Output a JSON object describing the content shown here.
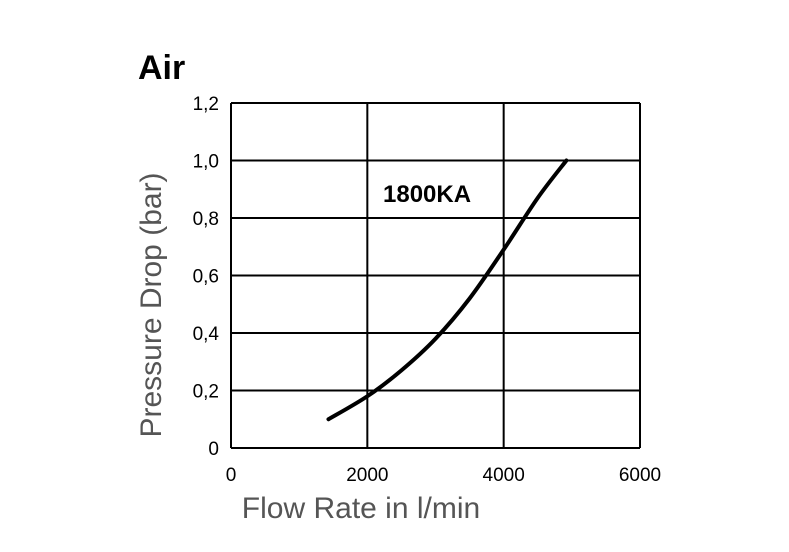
{
  "chart_data": {
    "type": "line",
    "title": "Air",
    "xlabel": "Flow Rate in l/min",
    "ylabel": "Pressure Drop (bar)",
    "xlim": [
      0,
      6000
    ],
    "ylim": [
      0,
      1.2
    ],
    "x_ticks": [
      "0",
      "2000",
      "4000",
      "6000"
    ],
    "y_ticks": [
      "0",
      "0,2",
      "0,4",
      "0,6",
      "0,8",
      "1,0",
      "1,2"
    ],
    "grid": true,
    "annotations": [
      "1800KA"
    ],
    "series": [
      {
        "name": "1800KA",
        "x": [
          1430,
          2000,
          2500,
          3000,
          3500,
          4000,
          4500,
          4920
        ],
        "y": [
          0.1,
          0.18,
          0.27,
          0.38,
          0.52,
          0.69,
          0.87,
          1.0
        ]
      }
    ]
  }
}
